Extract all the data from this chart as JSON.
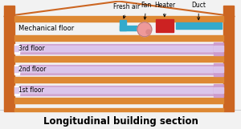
{
  "title": "Longitudinal building section",
  "bg_color": "#f2f2f2",
  "wall_color": "#cc6622",
  "floor_color": "#dd8833",
  "pipe_color_outer": "#cc99cc",
  "pipe_color_inner": "#ddc8ee",
  "duct_color": "#33aacc",
  "fan_color": "#ee9999",
  "heater_color": "#cc2222",
  "mech_floor_label": "Mechanical floor",
  "floor_labels": [
    "3rd floor",
    "2nd floor",
    "1st floor"
  ],
  "labels_top": [
    "Fresh air",
    "Fan",
    "Heater",
    "Duct"
  ],
  "title_fontsize": 8.5,
  "label_fontsize": 5.5
}
